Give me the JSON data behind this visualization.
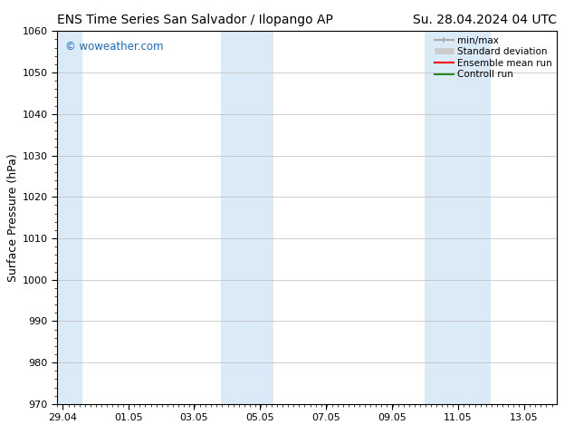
{
  "title_left": "ENS Time Series San Salvador / Ilopango AP",
  "title_right": "Su. 28.04.2024 04 UTC",
  "ylabel": "Surface Pressure (hPa)",
  "ylim": [
    970,
    1060
  ],
  "yticks": [
    970,
    980,
    990,
    1000,
    1010,
    1020,
    1030,
    1040,
    1050,
    1060
  ],
  "xtick_labels": [
    "29.04",
    "01.05",
    "03.05",
    "05.05",
    "07.05",
    "09.05",
    "11.05",
    "13.05"
  ],
  "xtick_positions": [
    0,
    2,
    4,
    6,
    8,
    10,
    12,
    14
  ],
  "xlim": [
    -0.15,
    15.0
  ],
  "watermark": "© woweather.com",
  "watermark_color": "#1a6bbf",
  "background_color": "#ffffff",
  "shaded_bands": [
    {
      "x_start": -0.15,
      "x_end": 0.6
    },
    {
      "x_start": 4.8,
      "x_end": 6.4
    },
    {
      "x_start": 11.0,
      "x_end": 13.0
    }
  ],
  "shade_color": "#daeaf7",
  "legend_entries": [
    {
      "label": "min/max",
      "color": "#aaaaaa",
      "lw": 1.5
    },
    {
      "label": "Standard deviation",
      "color": "#cccccc",
      "lw": 5
    },
    {
      "label": "Ensemble mean run",
      "color": "#ff0000",
      "lw": 1.5
    },
    {
      "label": "Controll run",
      "color": "#228b22",
      "lw": 1.5
    }
  ],
  "grid_color": "#bbbbbb",
  "title_fontsize": 10,
  "axis_label_fontsize": 9,
  "tick_fontsize": 8,
  "legend_fontsize": 7.5
}
